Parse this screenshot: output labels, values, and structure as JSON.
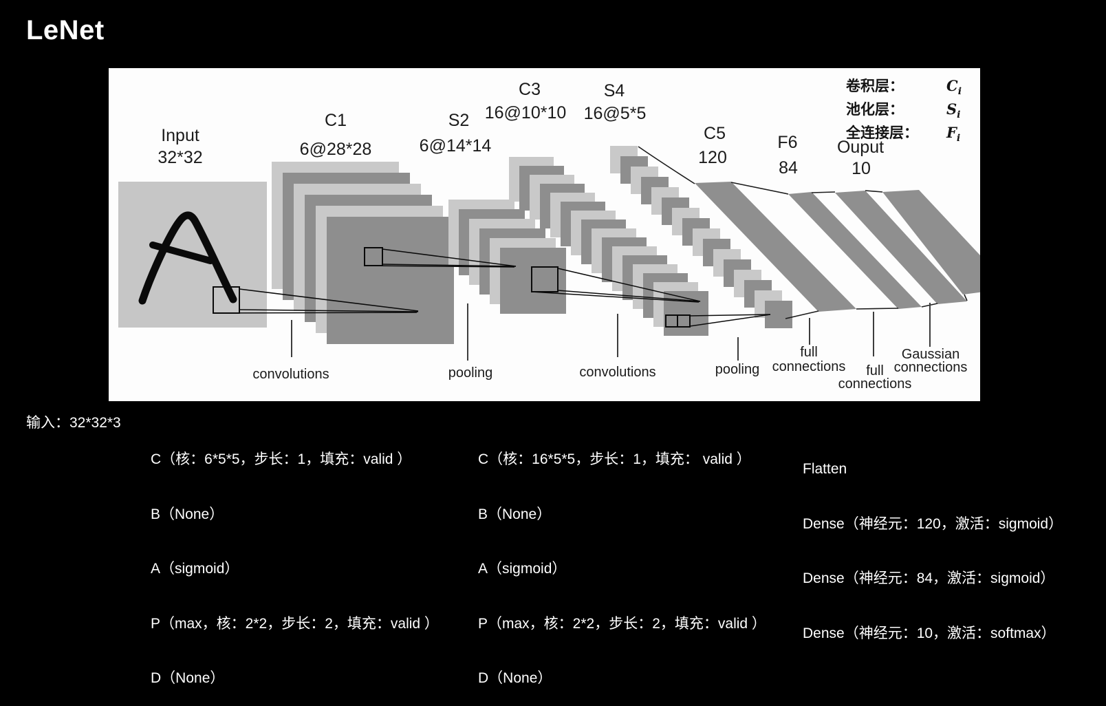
{
  "title": "LeNet",
  "legend": {
    "rows": [
      {
        "label": "卷积层：",
        "symbol": "C",
        "sub": "i"
      },
      {
        "label": "池化层：",
        "symbol": "S",
        "sub": "i"
      },
      {
        "label": "全连接层：",
        "symbol": "F",
        "sub": "i"
      }
    ]
  },
  "diagram": {
    "layers": [
      {
        "name": "Input",
        "size": "32*32"
      },
      {
        "name": "C1",
        "size": "6@28*28"
      },
      {
        "name": "S2",
        "size": "6@14*14"
      },
      {
        "name": "C3",
        "size": "16@10*10"
      },
      {
        "name": "S4",
        "size": "16@5*5"
      },
      {
        "name": "C5",
        "size": "120"
      },
      {
        "name": "F6",
        "size": "84"
      },
      {
        "name": "Ouput",
        "size": "10"
      }
    ],
    "operations": [
      [
        "convolutions"
      ],
      [
        "pooling"
      ],
      [
        "convolutions"
      ],
      [
        "pooling"
      ],
      [
        "full",
        "connections"
      ],
      [
        "full",
        "connections"
      ],
      [
        "Gaussian",
        "connections"
      ]
    ],
    "stacks": {
      "c1": {
        "count": 6
      },
      "s2": {
        "count": 6
      },
      "c3": {
        "count": 16
      },
      "s4": {
        "count": 16
      }
    }
  },
  "colors": {
    "background": "#000000",
    "panel_bg": "#fdfdfd",
    "map_light": "#c9c9c9",
    "map_dark": "#8e8e8e",
    "input_fill": "#c6c6c6",
    "band": "#8f8f8f",
    "ink": "#1b1b1b"
  },
  "annotations": {
    "input": "输入：32*32*3",
    "block1": [
      "C（核：6*5*5，步长：1，填充：valid ）",
      "B（None）",
      "A（sigmoid）",
      "P（max，核：2*2，步长：2，填充：valid ）",
      "D（None）"
    ],
    "block2": [
      "C（核：16*5*5，步长：1，填充： valid ）",
      "B（None）",
      "A（sigmoid）",
      "P（max，核：2*2，步长：2，填充：valid ）",
      "D（None）"
    ],
    "block3": [
      "Flatten",
      "Dense（神经元：120，激活：sigmoid）",
      "Dense（神经元：84，激活：sigmoid）",
      "Dense（神经元：10，激活：softmax）"
    ]
  }
}
